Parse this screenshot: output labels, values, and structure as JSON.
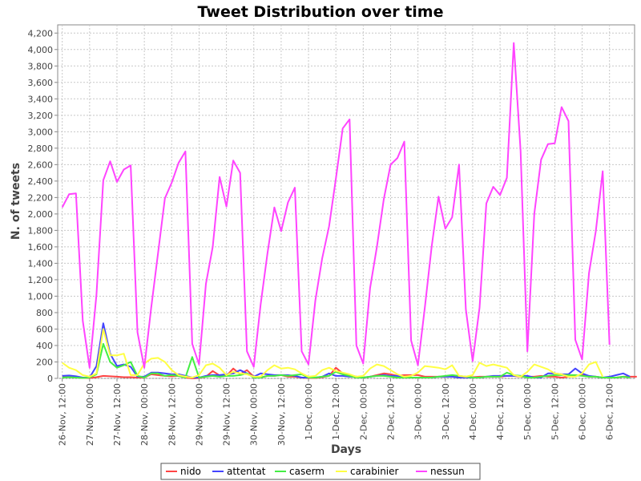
{
  "chart_data": {
    "type": "line",
    "title": "Tweet Distribution over time",
    "xlabel": "Days",
    "ylabel": "N. of tweets",
    "ylim": [
      0,
      4300
    ],
    "yticks": [
      0,
      200,
      400,
      600,
      800,
      1000,
      1200,
      1400,
      1600,
      1800,
      2000,
      2200,
      2400,
      2600,
      2800,
      3000,
      3200,
      3400,
      3600,
      3800,
      4000,
      4200
    ],
    "ytick_labels": [
      "0",
      "200",
      "400",
      "600",
      "800",
      "1,000",
      "1,200",
      "1,400",
      "1,600",
      "1,800",
      "2,000",
      "2,200",
      "2,400",
      "2,600",
      "2,800",
      "3,000",
      "3,200",
      "3,400",
      "3,600",
      "3,800",
      "4,000",
      "4,200"
    ],
    "xlim_hours": [
      -2,
      251
    ],
    "xtick_hours": [
      0,
      12,
      24,
      36,
      48,
      60,
      72,
      84,
      96,
      108,
      120,
      132,
      144,
      156,
      168,
      180,
      192,
      204,
      216,
      228,
      240
    ],
    "xtick_labels": [
      "26-Nov, 12:00",
      "27-Nov, 00:00",
      "27-Nov, 12:00",
      "28-Nov, 00:00",
      "28-Nov, 12:00",
      "29-Nov, 00:00",
      "29-Nov, 12:00",
      "30-Nov, 00:00",
      "30-Nov, 12:00",
      "1-Dec, 00:00",
      "1-Dec, 12:00",
      "2-Dec, 00:00",
      "2-Dec, 12:00",
      "3-Dec, 00:00",
      "3-Dec, 12:00",
      "4-Dec, 00:00",
      "4-Dec, 12:00",
      "5-Dec, 00:00",
      "5-Dec, 12:00",
      "6-Dec, 00:00",
      "6-Dec, 12:00"
    ],
    "x_step_hours": 3,
    "grid": true,
    "legend_position": "bottom-center",
    "series": [
      {
        "name": "nido",
        "color": "#ff4444",
        "values": [
          20,
          25,
          15,
          5,
          5,
          15,
          30,
          25,
          20,
          15,
          15,
          10,
          10,
          50,
          40,
          30,
          25,
          30,
          10,
          0,
          5,
          20,
          90,
          35,
          30,
          120,
          50,
          100,
          20,
          10,
          30,
          30,
          40,
          20,
          20,
          10,
          5,
          5,
          15,
          30,
          130,
          60,
          40,
          20,
          10,
          20,
          40,
          60,
          50,
          30,
          40,
          40,
          40,
          20,
          20,
          20,
          20,
          30,
          20,
          20,
          15,
          20,
          20,
          20,
          20,
          30,
          30,
          20,
          20,
          20,
          30,
          20,
          20,
          10,
          20,
          30,
          40,
          20,
          20,
          10,
          10,
          10,
          20,
          20,
          20
        ]
      },
      {
        "name": "attentat",
        "color": "#4444ff",
        "values": [
          30,
          35,
          25,
          10,
          10,
          150,
          670,
          300,
          150,
          170,
          140,
          20,
          20,
          70,
          70,
          60,
          50,
          50,
          30,
          10,
          10,
          30,
          40,
          40,
          50,
          60,
          100,
          60,
          20,
          60,
          50,
          40,
          40,
          40,
          30,
          10,
          10,
          10,
          20,
          60,
          30,
          30,
          20,
          20,
          10,
          20,
          30,
          40,
          30,
          30,
          20,
          10,
          10,
          10,
          10,
          20,
          20,
          20,
          10,
          10,
          10,
          10,
          20,
          30,
          30,
          30,
          30,
          30,
          30,
          10,
          10,
          60,
          60,
          50,
          50,
          120,
          60,
          30,
          20,
          10,
          20,
          40,
          60,
          20
        ]
      },
      {
        "name": "caserm",
        "color": "#44ee44",
        "values": [
          10,
          15,
          10,
          5,
          10,
          50,
          420,
          200,
          130,
          160,
          200,
          30,
          10,
          60,
          60,
          30,
          40,
          30,
          10,
          260,
          10,
          20,
          30,
          20,
          30,
          30,
          40,
          60,
          10,
          10,
          30,
          30,
          40,
          30,
          40,
          50,
          10,
          10,
          20,
          30,
          80,
          50,
          30,
          10,
          10,
          20,
          30,
          30,
          20,
          10,
          10,
          10,
          10,
          10,
          10,
          20,
          30,
          40,
          30,
          20,
          10,
          10,
          20,
          20,
          20,
          70,
          40,
          30,
          10,
          10,
          20,
          30,
          40,
          40,
          40,
          40,
          30,
          20,
          20,
          10,
          10,
          10,
          20,
          10
        ]
      },
      {
        "name": "carabinier",
        "color": "#ffff44",
        "values": [
          190,
          130,
          100,
          40,
          20,
          60,
          600,
          280,
          280,
          300,
          40,
          40,
          180,
          240,
          250,
          200,
          100,
          40,
          20,
          10,
          40,
          160,
          180,
          130,
          40,
          80,
          60,
          50,
          20,
          20,
          100,
          160,
          120,
          130,
          110,
          60,
          20,
          30,
          100,
          130,
          90,
          70,
          50,
          20,
          30,
          120,
          170,
          150,
          100,
          50,
          20,
          30,
          70,
          150,
          140,
          130,
          110,
          160,
          30,
          20,
          40,
          190,
          150,
          170,
          150,
          130,
          40,
          20,
          80,
          170,
          140,
          110,
          60,
          50,
          20,
          20,
          60,
          170,
          200,
          20
        ]
      },
      {
        "name": "nessun",
        "color": "#ff44ff",
        "values": [
          2080,
          2240,
          2250,
          700,
          130,
          1020,
          2410,
          2640,
          2390,
          2540,
          2590,
          560,
          130,
          860,
          1520,
          2190,
          2380,
          2620,
          2760,
          420,
          170,
          1150,
          1600,
          2450,
          2090,
          2650,
          2500,
          330,
          140,
          900,
          1520,
          2080,
          1790,
          2140,
          2320,
          330,
          170,
          950,
          1460,
          1850,
          2430,
          3040,
          3150,
          400,
          180,
          1100,
          1600,
          2180,
          2600,
          2680,
          2880,
          460,
          160,
          860,
          1600,
          2210,
          1820,
          1960,
          2600,
          840,
          210,
          860,
          2130,
          2330,
          2230,
          2440,
          4080,
          2770,
          330,
          2000,
          2660,
          2850,
          2860,
          3300,
          3130,
          470,
          230,
          1280,
          1790,
          2520,
          410
        ]
      }
    ]
  }
}
